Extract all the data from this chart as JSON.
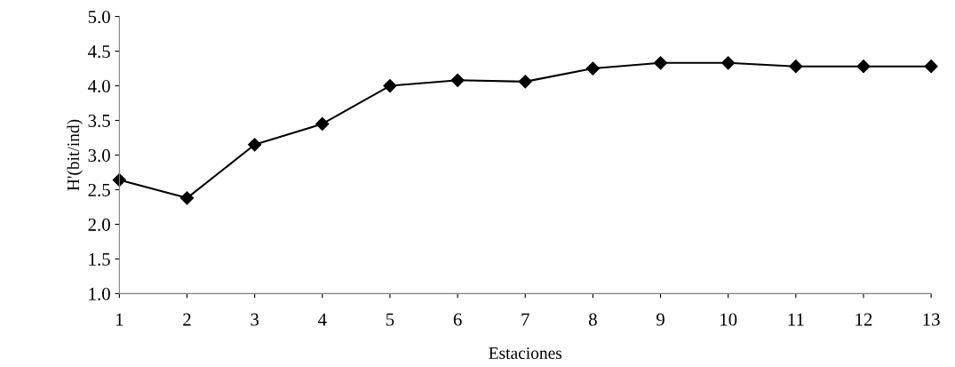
{
  "chart_data": {
    "type": "line",
    "xlabel": "Estaciones",
    "ylabel": "H'(bit/ind)",
    "x": [
      1,
      2,
      3,
      4,
      5,
      6,
      7,
      8,
      9,
      10,
      11,
      12,
      13
    ],
    "series": [
      {
        "color": "#000000",
        "values": [
          2.64,
          2.38,
          3.15,
          3.45,
          4.0,
          4.08,
          4.06,
          4.25,
          4.33,
          4.33,
          4.28,
          4.28,
          4.28
        ]
      }
    ],
    "xlim": [
      1,
      13
    ],
    "xticks": [
      1,
      2,
      3,
      4,
      5,
      6,
      7,
      8,
      9,
      10,
      11,
      12,
      13
    ],
    "ylim": [
      1.0,
      5.0
    ],
    "yticks": [
      {
        "value": 1.0,
        "label": "1.0"
      },
      {
        "value": 1.5,
        "label": "1.5"
      },
      {
        "value": 2.0,
        "label": "2.0"
      },
      {
        "value": 2.5,
        "label": "2.5"
      },
      {
        "value": 3.0,
        "label": "3.0"
      },
      {
        "value": 3.5,
        "label": "3.5"
      },
      {
        "value": 4.0,
        "label": "4.0"
      },
      {
        "value": 4.5,
        "label": "4.5"
      },
      {
        "value": 5.0,
        "label": "5.0"
      }
    ],
    "grid": false,
    "marker": "diamond",
    "line_style": "solid"
  }
}
